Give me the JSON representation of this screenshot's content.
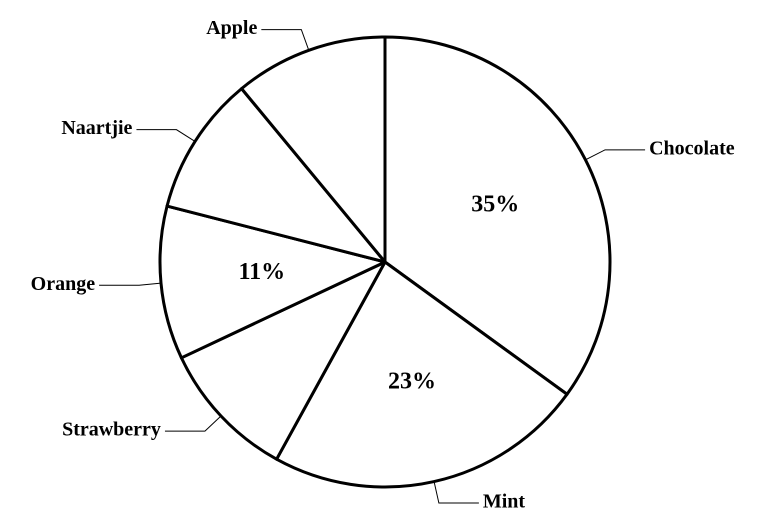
{
  "chart_data": {
    "type": "pie",
    "categories": [
      "Chocolate",
      "Mint",
      "Strawberry",
      "Orange",
      "Naartjie",
      "Apple"
    ],
    "values": [
      35,
      23,
      10,
      11,
      10,
      11
    ],
    "value_labels": [
      "35%",
      "23%",
      null,
      "11%",
      null,
      null
    ],
    "color": "#ffffff"
  }
}
